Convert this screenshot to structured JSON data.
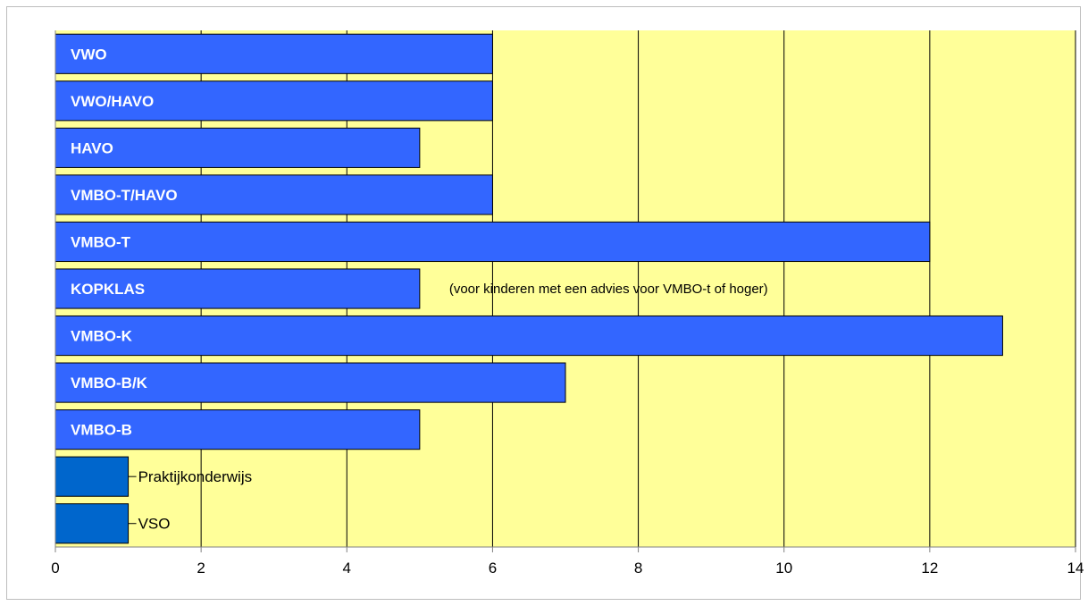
{
  "chart_data": {
    "type": "bar",
    "orientation": "horizontal",
    "categories": [
      "VWO",
      "VWO/HAVO",
      "HAVO",
      "VMBO-T/HAVO",
      "VMBO-T",
      "KOPKLAS",
      "VMBO-K",
      "VMBO-B/K",
      "VMBO-B",
      "Praktijkonderwijs",
      "VSO"
    ],
    "values": [
      6,
      6,
      5,
      6,
      12,
      5,
      13,
      7,
      5,
      1,
      1
    ],
    "xlim": [
      0,
      14
    ],
    "xticks": [
      0,
      2,
      4,
      6,
      8,
      10,
      12,
      14
    ],
    "grid": true,
    "legend": "none",
    "label_inside": [
      true,
      true,
      true,
      true,
      true,
      true,
      true,
      true,
      true,
      false,
      false
    ],
    "annotation": "(voor kinderen met een advies voor VMBO-t of hoger)",
    "annotation_category": "KOPKLAS"
  },
  "colors": {
    "plot_background": "#ffff99",
    "bar_primary": "#3366ff",
    "bar_secondary": "#0066cc",
    "bar_border": "#000000",
    "gridline": "#000000",
    "axis": "#808080"
  }
}
